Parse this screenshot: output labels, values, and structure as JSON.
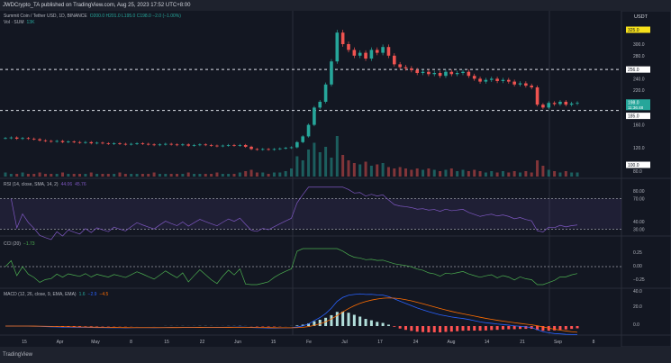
{
  "header": {
    "publish_line": "JWDCrypto_TA published on TradingView.com, Aug 25, 2023 17:52 UTC+8:00"
  },
  "legend": {
    "symbol": "Summit Coin / Tether USD, 1D, BINANCE",
    "ohlc": "O200.0 H201.0 L195.0 C198.0 −2.0 (−1.00%)",
    "vol_label": "Vol · SUM",
    "vol_value": "13K"
  },
  "indicators": {
    "rsi": {
      "label": "RSI (14, close, SMA, 14, 2)",
      "value1": "44.06",
      "value2": "45.76"
    },
    "cci": {
      "label": "CCI (20)",
      "value": "−1.73"
    },
    "macd": {
      "label": "MACD (12, 26, close, 9, EMA, EMA)",
      "hist": "1.6",
      "macd": "−2.9",
      "signal": "−4.5"
    }
  },
  "price_axis": {
    "currency": "USDT",
    "ticks": [
      "300.0",
      "280.0",
      "240.0",
      "220.0",
      "160.0",
      "120.0",
      "80.0"
    ],
    "tick_values": [
      300,
      280,
      240,
      220,
      160,
      120,
      80
    ],
    "high_label": "325.0",
    "level_upper": "256.0",
    "current_price": "198.0",
    "countdown": "11:36:48",
    "level_lower": "185.0",
    "vol_label": "100.0"
  },
  "rsi_axis": [
    "80.00",
    "70.00",
    "40.00",
    "30.00"
  ],
  "cci_axis": [
    "0.25",
    "0.00",
    "−0.25"
  ],
  "macd_axis": [
    "40.0",
    "20.0",
    "0.0"
  ],
  "time_axis": [
    "15",
    "Apr",
    "May",
    "8",
    "15",
    "22",
    "Jun",
    "15",
    "Fe",
    "Jul",
    "17",
    "24",
    "Aug",
    "14",
    "21",
    "Sep",
    "8"
  ],
  "footer": {
    "brand": "TradingView"
  },
  "colors": {
    "up": "#26a69a",
    "down": "#ef5350",
    "rsi": "#7e57c2",
    "cci": "#4caf50",
    "macd": "#2962ff",
    "signal": "#ff6d00",
    "highlight": "#f7e11b"
  },
  "chart_data": {
    "type": "candlestick",
    "ylim": [
      80,
      330
    ],
    "levels": [
      256,
      185
    ],
    "closes": [
      137,
      138,
      136,
      137,
      136,
      135,
      133,
      132,
      131,
      132,
      130,
      131,
      130,
      129,
      130,
      128,
      129,
      128,
      127,
      128,
      127,
      126,
      127,
      128,
      127,
      126,
      125,
      126,
      127,
      126,
      125,
      126,
      124,
      125,
      126,
      125,
      124,
      123,
      124,
      125,
      124,
      125,
      122,
      118,
      117,
      118,
      117,
      118,
      119,
      120,
      121,
      130,
      140,
      160,
      190,
      200,
      230,
      270,
      320,
      300,
      290,
      280,
      285,
      275,
      290,
      285,
      295,
      280,
      265,
      260,
      258,
      255,
      250,
      252,
      248,
      250,
      245,
      252,
      248,
      250,
      252,
      245,
      240,
      235,
      238,
      240,
      236,
      238,
      235,
      230,
      232,
      228,
      225,
      195,
      190,
      198,
      196,
      200,
      195,
      197,
      198
    ],
    "volumes": [
      3,
      2,
      2,
      3,
      2,
      2,
      3,
      2,
      2,
      2,
      3,
      2,
      2,
      2,
      2,
      3,
      2,
      2,
      2,
      2,
      3,
      2,
      2,
      2,
      2,
      2,
      3,
      2,
      2,
      2,
      2,
      2,
      3,
      2,
      2,
      2,
      2,
      3,
      2,
      2,
      2,
      3,
      4,
      5,
      3,
      3,
      2,
      3,
      3,
      4,
      6,
      15,
      12,
      20,
      25,
      18,
      22,
      14,
      30,
      16,
      12,
      10,
      9,
      11,
      8,
      9,
      10,
      7,
      6,
      7,
      6,
      5,
      6,
      5,
      6,
      5,
      4,
      5,
      6,
      4,
      5,
      4,
      5,
      4,
      3,
      4,
      3,
      4,
      3,
      4,
      3,
      4,
      3,
      12,
      8,
      5,
      4,
      3,
      4,
      3,
      3
    ]
  }
}
